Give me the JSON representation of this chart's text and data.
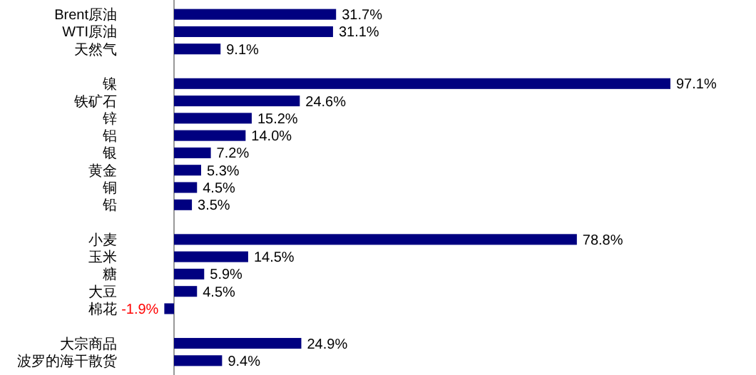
{
  "chart_data": {
    "type": "bar",
    "orientation": "horizontal",
    "data_labels": true,
    "color": "#000080",
    "categories": [
      "Brent原油",
      "WTI原油",
      "天然气",
      null,
      "镍",
      "铁矿石",
      "锌",
      "铝",
      "银",
      "黄金",
      "铜",
      "铅",
      null,
      "小麦",
      "玉米",
      "糖",
      "大豆",
      "棉花",
      null,
      "大宗商品",
      "波罗的海干散货"
    ],
    "values": [
      31.7,
      31.1,
      9.1,
      null,
      97.1,
      24.6,
      15.2,
      14.0,
      7.2,
      5.3,
      4.5,
      3.5,
      null,
      78.8,
      14.5,
      5.9,
      4.5,
      -1.9,
      null,
      24.9,
      9.4
    ],
    "value_labels": [
      "31.7%",
      "31.1%",
      "9.1%",
      null,
      "97.1%",
      "24.6%",
      "15.2%",
      "14.0%",
      "7.2%",
      "5.3%",
      "4.5%",
      "3.5%",
      null,
      "78.8%",
      "14.5%",
      "5.9%",
      "4.5%",
      "-1.9%",
      null,
      "24.9%",
      "9.4%"
    ]
  }
}
